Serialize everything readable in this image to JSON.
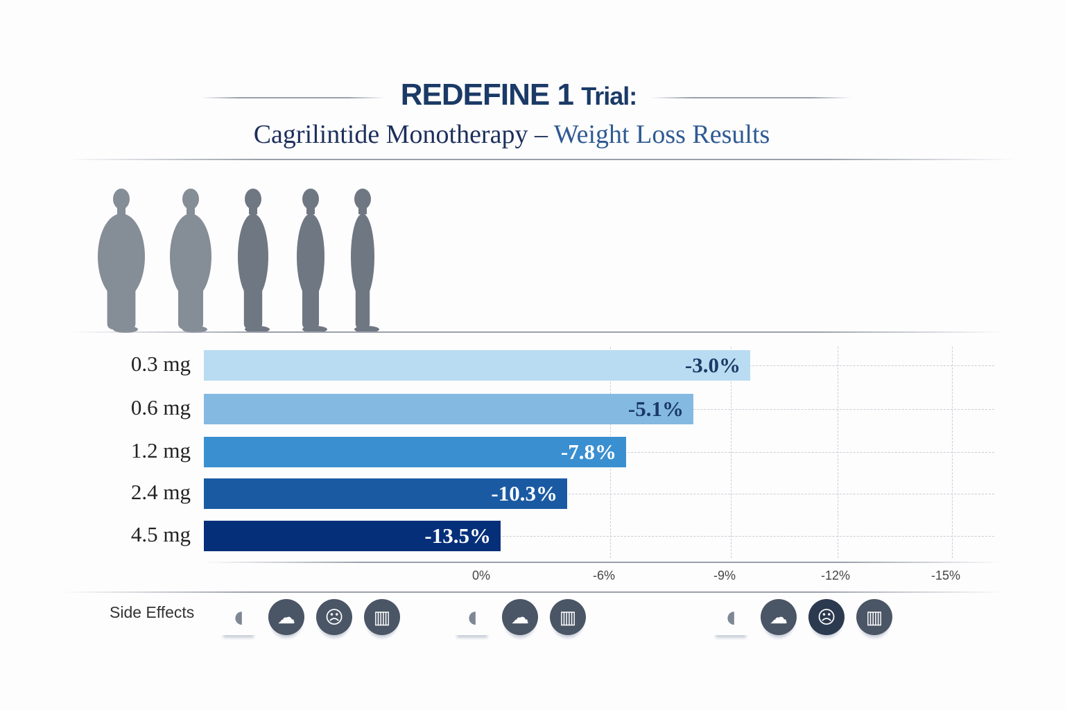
{
  "title": {
    "main": "REDEFINE 1",
    "suffix": "Trial:",
    "subtitle_part1": "Cagrilintide Monotherapy –",
    "subtitle_part2": "Weight Loss Results"
  },
  "chart_data": {
    "type": "bar",
    "orientation": "horizontal",
    "categories": [
      "0.3 mg",
      "0.6 mg",
      "1.2 mg",
      "2.4 mg",
      "4.5 mg"
    ],
    "values": [
      -3.0,
      -5.1,
      -7.8,
      -10.3,
      -13.5
    ],
    "data_labels": [
      "-3.0%",
      "-5.1%",
      "-7.8%",
      "-10.3%",
      "-13.5%"
    ],
    "x_tick_labels": [
      "0%",
      "-6%",
      "-9%",
      "-12%",
      "-15%"
    ],
    "grid": true,
    "colors": [
      "#b9dcf2",
      "#84b9e2",
      "#3a8fd0",
      "#1a5aa3",
      "#062f7a"
    ],
    "label_colors": [
      "#1b3a66",
      "#1b3a66",
      "#ffffff",
      "#ffffff",
      "#ffffff"
    ]
  },
  "side_effects": {
    "label": "Side Effects",
    "groups": [
      [
        "stomach-icon",
        "nausea-icon",
        "sick-face-icon",
        "toilet-icon"
      ],
      [
        "stomach-icon",
        "nausea-icon",
        "toilet-icon"
      ],
      [
        "stomach-icon",
        "nausea-icon",
        "sick-face-icon",
        "toilet-icon"
      ]
    ]
  }
}
